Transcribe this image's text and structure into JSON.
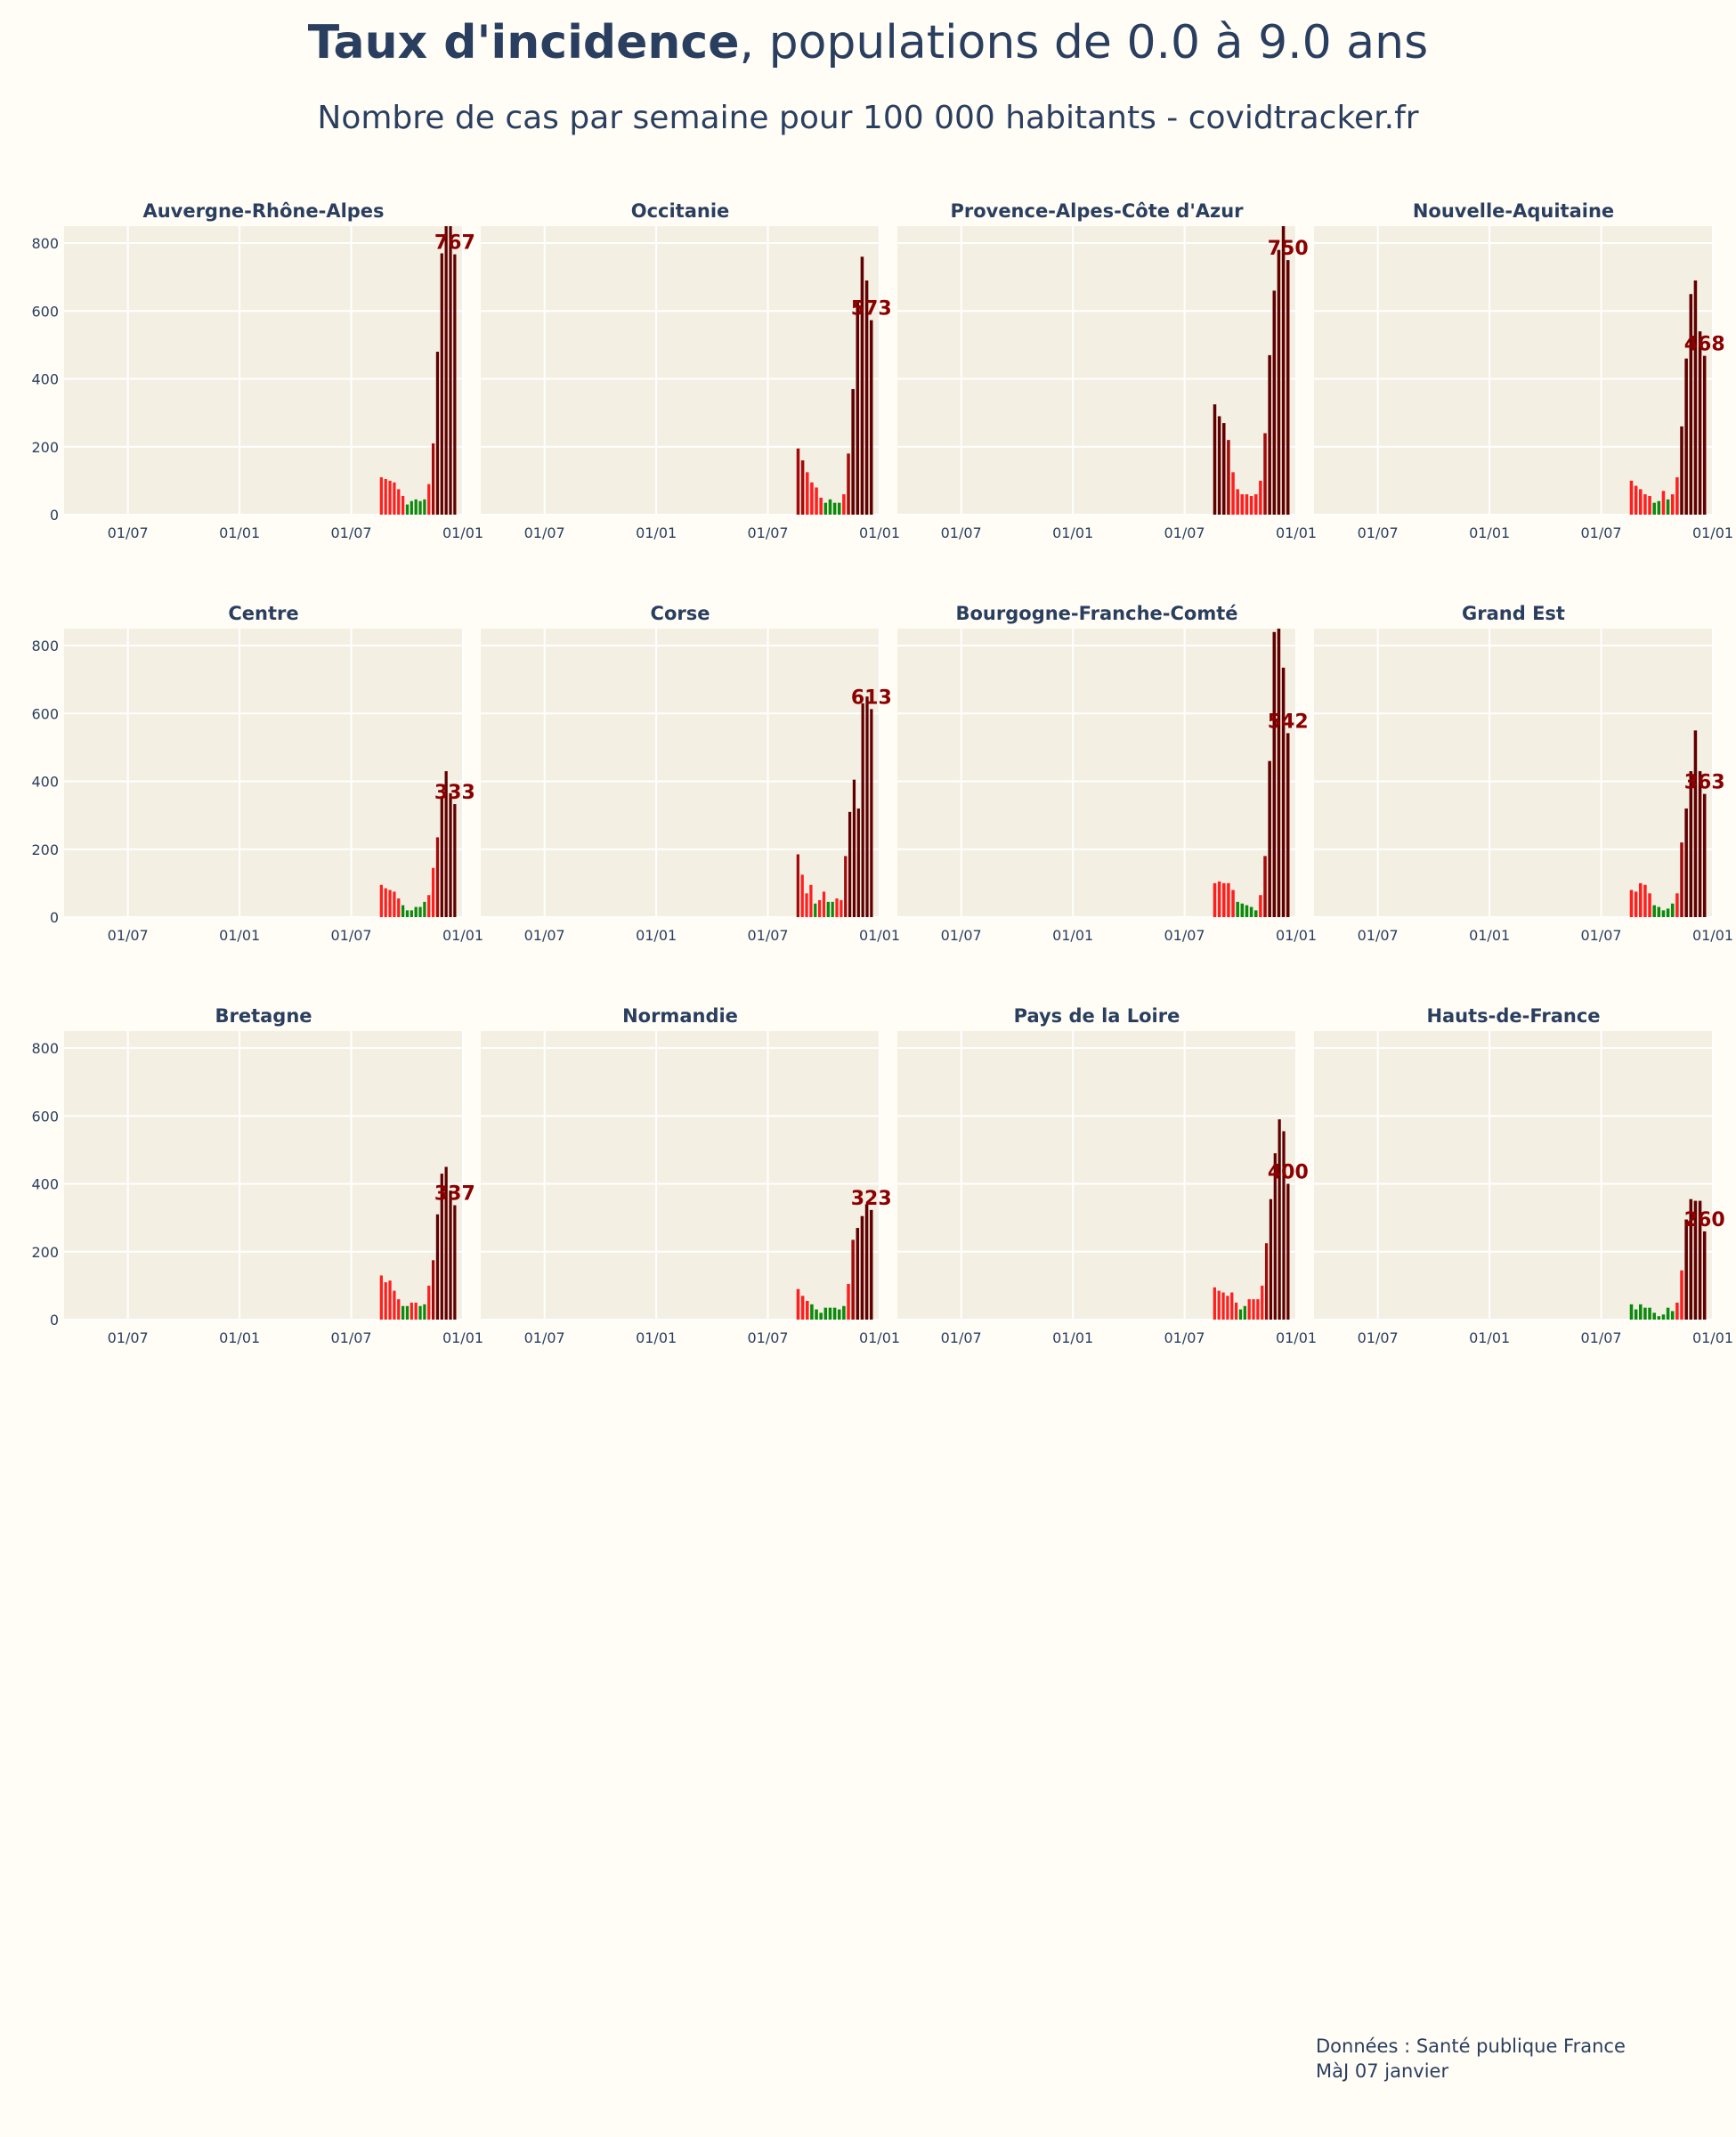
{
  "title_bold": "Taux d'incidence",
  "title_rest": ", populations de 0.0 à 9.0 ans",
  "subtitle": "Nombre de cas par semaine pour 100 000 habitants - covidtracker.fr",
  "footer": {
    "source": "Données : Santé publique France",
    "update": "MàJ 07 janvier"
  },
  "colors": {
    "background": "#fffdf6",
    "plot_background": "#f3efe3",
    "grid": "#ffffff",
    "text": "#2a3f5f",
    "low": "#0b8a0b",
    "medium": "#ff1f1f",
    "high": "#a50a0a",
    "very_high": "#600000",
    "label": "#8b0000"
  },
  "chart_data": [
    {
      "type": "bar",
      "title": "Auvergne-Rhône-Alpes",
      "ylim": [
        0,
        850
      ],
      "yticks": [
        0,
        200,
        400,
        600,
        800
      ],
      "xticks": [
        "01/07",
        "01/01",
        "01/07",
        "01/01"
      ],
      "values": [
        110,
        105,
        100,
        95,
        75,
        55,
        30,
        40,
        45,
        40,
        45,
        90,
        210,
        480,
        770,
        850,
        850,
        767
      ],
      "last_value": "767",
      "grid": true
    },
    {
      "type": "bar",
      "title": "Occitanie",
      "ylim": [
        0,
        850
      ],
      "yticks": [
        0,
        200,
        400,
        600,
        800
      ],
      "xticks": [
        "01/07",
        "01/01",
        "01/07",
        "01/01"
      ],
      "values": [
        195,
        160,
        125,
        95,
        80,
        50,
        35,
        45,
        35,
        35,
        60,
        180,
        370,
        630,
        760,
        690,
        573
      ],
      "last_value": "573",
      "grid": true
    },
    {
      "type": "bar",
      "title": "Provence-Alpes-Côte d'Azur",
      "ylim": [
        0,
        850
      ],
      "yticks": [
        0,
        200,
        400,
        600,
        800
      ],
      "xticks": [
        "01/07",
        "01/01",
        "01/07",
        "01/01"
      ],
      "values": [
        325,
        290,
        270,
        220,
        125,
        75,
        60,
        60,
        55,
        60,
        100,
        240,
        470,
        660,
        780,
        850,
        750
      ],
      "last_value": "750",
      "grid": true
    },
    {
      "type": "bar",
      "title": "Nouvelle-Aquitaine",
      "ylim": [
        0,
        850
      ],
      "yticks": [
        0,
        200,
        400,
        600,
        800
      ],
      "xticks": [
        "01/07",
        "01/01",
        "01/07",
        "01/01"
      ],
      "values": [
        100,
        85,
        75,
        60,
        55,
        35,
        40,
        70,
        45,
        60,
        110,
        260,
        460,
        650,
        690,
        540,
        468
      ],
      "last_value": "468",
      "grid": true
    },
    {
      "type": "bar",
      "title": "Centre",
      "ylim": [
        0,
        850
      ],
      "yticks": [
        0,
        200,
        400,
        600,
        800
      ],
      "xticks": [
        "01/07",
        "01/01",
        "01/07",
        "01/01"
      ],
      "values": [
        95,
        85,
        80,
        75,
        55,
        35,
        20,
        20,
        30,
        30,
        45,
        65,
        145,
        235,
        350,
        430,
        365,
        333
      ],
      "last_value": "333",
      "grid": true
    },
    {
      "type": "bar",
      "title": "Corse",
      "ylim": [
        0,
        850
      ],
      "yticks": [
        0,
        200,
        400,
        600,
        800
      ],
      "xticks": [
        "01/07",
        "01/01",
        "01/07",
        "01/01"
      ],
      "values": [
        185,
        125,
        70,
        95,
        40,
        50,
        75,
        45,
        45,
        55,
        50,
        180,
        310,
        405,
        320,
        630,
        650,
        613
      ],
      "last_value": "613",
      "grid": true
    },
    {
      "type": "bar",
      "title": "Bourgogne-Franche-Comté",
      "ylim": [
        0,
        850
      ],
      "yticks": [
        0,
        200,
        400,
        600,
        800
      ],
      "xticks": [
        "01/07",
        "01/01",
        "01/07",
        "01/01"
      ],
      "values": [
        100,
        105,
        100,
        100,
        80,
        45,
        40,
        35,
        30,
        20,
        65,
        180,
        460,
        840,
        850,
        735,
        542
      ],
      "last_value": "542",
      "grid": true
    },
    {
      "type": "bar",
      "title": "Grand Est",
      "ylim": [
        0,
        850
      ],
      "yticks": [
        0,
        200,
        400,
        600,
        800
      ],
      "xticks": [
        "01/07",
        "01/01",
        "01/07",
        "01/01"
      ],
      "values": [
        80,
        75,
        100,
        95,
        70,
        35,
        30,
        20,
        25,
        40,
        70,
        220,
        320,
        430,
        550,
        430,
        363
      ],
      "last_value": "363",
      "grid": true
    },
    {
      "type": "bar",
      "title": "Bretagne",
      "ylim": [
        0,
        850
      ],
      "yticks": [
        0,
        200,
        400,
        600,
        800
      ],
      "xticks": [
        "01/07",
        "01/01",
        "01/07",
        "01/01"
      ],
      "values": [
        130,
        110,
        115,
        85,
        60,
        40,
        40,
        50,
        50,
        40,
        45,
        100,
        175,
        310,
        430,
        450,
        380,
        337
      ],
      "last_value": "337",
      "grid": true
    },
    {
      "type": "bar",
      "title": "Normandie",
      "ylim": [
        0,
        850
      ],
      "yticks": [
        0,
        200,
        400,
        600,
        800
      ],
      "xticks": [
        "01/07",
        "01/01",
        "01/07",
        "01/01"
      ],
      "values": [
        90,
        70,
        55,
        45,
        30,
        20,
        35,
        35,
        35,
        30,
        40,
        105,
        235,
        270,
        305,
        340,
        323
      ],
      "last_value": "323",
      "grid": true
    },
    {
      "type": "bar",
      "title": "Pays de la Loire",
      "ylim": [
        0,
        850
      ],
      "yticks": [
        0,
        200,
        400,
        600,
        800
      ],
      "xticks": [
        "01/07",
        "01/01",
        "01/07",
        "01/01"
      ],
      "values": [
        95,
        85,
        80,
        70,
        80,
        50,
        30,
        40,
        60,
        60,
        60,
        100,
        225,
        355,
        490,
        590,
        555,
        400
      ],
      "last_value": "400",
      "grid": true
    },
    {
      "type": "bar",
      "title": "Hauts-de-France",
      "ylim": [
        0,
        850
      ],
      "yticks": [
        0,
        200,
        400,
        600,
        800
      ],
      "xticks": [
        "01/07",
        "01/01",
        "01/07",
        "01/01"
      ],
      "values": [
        45,
        30,
        45,
        35,
        35,
        20,
        10,
        15,
        35,
        25,
        50,
        145,
        295,
        355,
        350,
        350,
        260
      ],
      "last_value": "260",
      "grid": true
    }
  ]
}
